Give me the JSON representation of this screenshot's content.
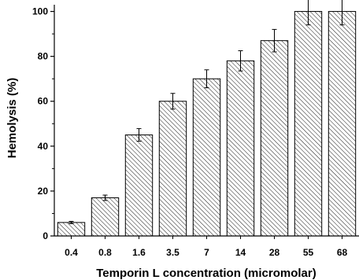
{
  "chart_data": {
    "type": "bar",
    "categories": [
      "0.4",
      "0.8",
      "1.6",
      "3.5",
      "7",
      "14",
      "28",
      "55",
      "68"
    ],
    "values": [
      6,
      17,
      45,
      60,
      70,
      78,
      87,
      100,
      100
    ],
    "errors": [
      0.5,
      1.2,
      2.8,
      3.5,
      4,
      4.5,
      5,
      6,
      6
    ],
    "xlabel": "Temporin L concentration (micromolar)",
    "ylabel": "Hemolysis (%)",
    "ylim": [
      0,
      103
    ],
    "yticks": [
      0,
      20,
      40,
      60,
      80,
      100
    ],
    "grid": false,
    "bar_fill": "hatched",
    "colors": {
      "bar_stroke": "#000000",
      "hatch": "#000000",
      "background": "#ffffff"
    }
  }
}
